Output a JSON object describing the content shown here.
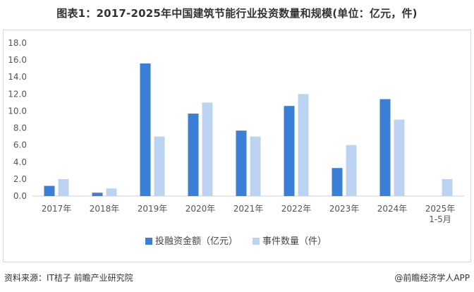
{
  "title": "图表1：2017-2025年中国建筑节能行业投资数量和规模(单位：亿元，件)",
  "source": "资料来源：IT桔子 前瞻产业研究院",
  "brand": "@前瞻经济学人APP",
  "colors": {
    "investment": "#3a7fd5",
    "events": "#bcd4f2",
    "axis": "#d0d0d0",
    "frame": "#d9d9d9"
  },
  "chart_data": {
    "type": "bar",
    "categories": [
      "2017年",
      "2018年",
      "2019年",
      "2020年",
      "2021年",
      "2022年",
      "2023年",
      "2024年",
      "2025年\n1-5月"
    ],
    "series": [
      {
        "name": "投融资金额（亿元）",
        "values": [
          1.2,
          0.4,
          15.6,
          9.7,
          7.7,
          10.6,
          3.3,
          11.4,
          null
        ]
      },
      {
        "name": "事件数量（件）",
        "values": [
          2,
          0.9,
          7,
          11,
          7,
          12,
          6,
          9,
          2
        ]
      }
    ],
    "ylim": [
      0,
      18
    ],
    "yticks": [
      "0.0",
      "2.0",
      "4.0",
      "6.0",
      "8.0",
      "10.0",
      "12.0",
      "14.0",
      "16.0",
      "18.0"
    ],
    "grid": false,
    "legend_position": "bottom"
  }
}
